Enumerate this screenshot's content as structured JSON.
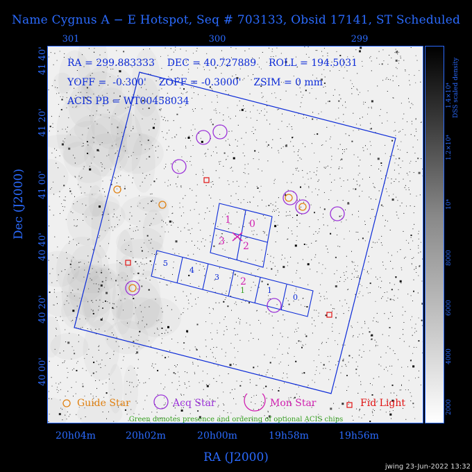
{
  "title": "Name Cygnus A − E Hotspot, Seq # 703133, Obsid 17141, ST Scheduled",
  "axes": {
    "top_ticks": [
      "301",
      "300",
      "299"
    ],
    "left_ticks": [
      "41 40'",
      "41 20'",
      "41 00'",
      "40 40'",
      "40 20'",
      "40 00'"
    ],
    "bottom_ticks": [
      "20h04m",
      "20h02m",
      "20h00m",
      "19h58m",
      "19h56m"
    ],
    "xlabel": "RA (J2000)",
    "ylabel": "Dec (J2000)"
  },
  "info": {
    "line1": "RA = 299.883333    DEC = 40.727889    ROLL = 194.5031",
    "line2": "YOFF =  -0.300'    ZOFF = -0.3000'    ZSIM = 0 mm",
    "line3": "ACIS PB = WT00458034"
  },
  "chips_upper": [
    "1",
    "0",
    "3",
    "2"
  ],
  "chips_lower": [
    "5",
    "4",
    "3",
    "2",
    "1",
    "0"
  ],
  "chip_optional_mark": "1",
  "legend": {
    "guide": "Guide Star",
    "acq": "Acq Star",
    "mon": "Mon Star",
    "fid": "Fid Light"
  },
  "note": "Green denotes presence and ordering of optional ACIS chips",
  "colorbar": {
    "label": "DSS scaled density",
    "ticks": [
      "2000",
      "4000",
      "6000",
      "8000",
      "10⁴",
      "1.2×10⁴",
      "1.4×10⁴"
    ]
  },
  "colors": {
    "blue": "#2b6bff",
    "guide": "#e08010",
    "acq": "#9a30d8",
    "mon": "#d020b0",
    "fid": "#e01010",
    "optional": "#35a020"
  },
  "footer": "jwing 23-Jun-2022 13:32"
}
